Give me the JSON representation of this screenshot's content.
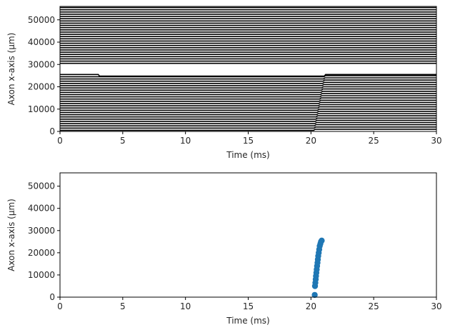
{
  "colors": {
    "background": "#ffffff",
    "axes": "#000000",
    "text": "#262626",
    "trace": "#000000",
    "scatter": "#1f77b4"
  },
  "chart_data": [
    {
      "type": "line",
      "title": "",
      "xlabel": "Time (ms)",
      "ylabel": "Axon x-axis (µm)",
      "xlim": [
        0,
        30
      ],
      "ylim": [
        0,
        56000
      ],
      "xticks": [
        "0",
        "5",
        "10",
        "15",
        "20",
        "25",
        "30"
      ],
      "yticks": [
        "0",
        "10000",
        "20000",
        "30000",
        "40000",
        "50000"
      ],
      "grid": false,
      "legend": "none",
      "traces": {
        "description_note": "",
        "count": 56,
        "spacing": 1000,
        "baseline_start": 500,
        "segment_break_time": 3.1,
        "lower_shift_start_time": 20.2,
        "lower_shift_end_time": 21.1,
        "upper_gap_y": [
          26500,
          29500
        ]
      }
    },
    {
      "type": "scatter",
      "title": "",
      "xlabel": "Time (ms)",
      "ylabel": "Axon x-axis (µm)",
      "xlim": [
        0,
        30
      ],
      "ylim": [
        0,
        56000
      ],
      "xticks": [
        "0",
        "5",
        "10",
        "15",
        "20",
        "25",
        "30"
      ],
      "yticks": [
        "0",
        "10000",
        "20000",
        "30000",
        "40000",
        "50000"
      ],
      "grid": false,
      "legend": "none",
      "series": [
        {
          "x": [
            20.3,
            20.32,
            20.35,
            20.38,
            20.4,
            20.43,
            20.46,
            20.49,
            20.52,
            20.55,
            20.58,
            20.62,
            20.66,
            20.7,
            20.75,
            20.8,
            20.86
          ],
          "y": [
            1000,
            5000,
            6500,
            8000,
            9500,
            11000,
            12500,
            14000,
            15500,
            17000,
            18500,
            20000,
            21500,
            23000,
            24000,
            25000,
            25500
          ]
        }
      ]
    }
  ]
}
